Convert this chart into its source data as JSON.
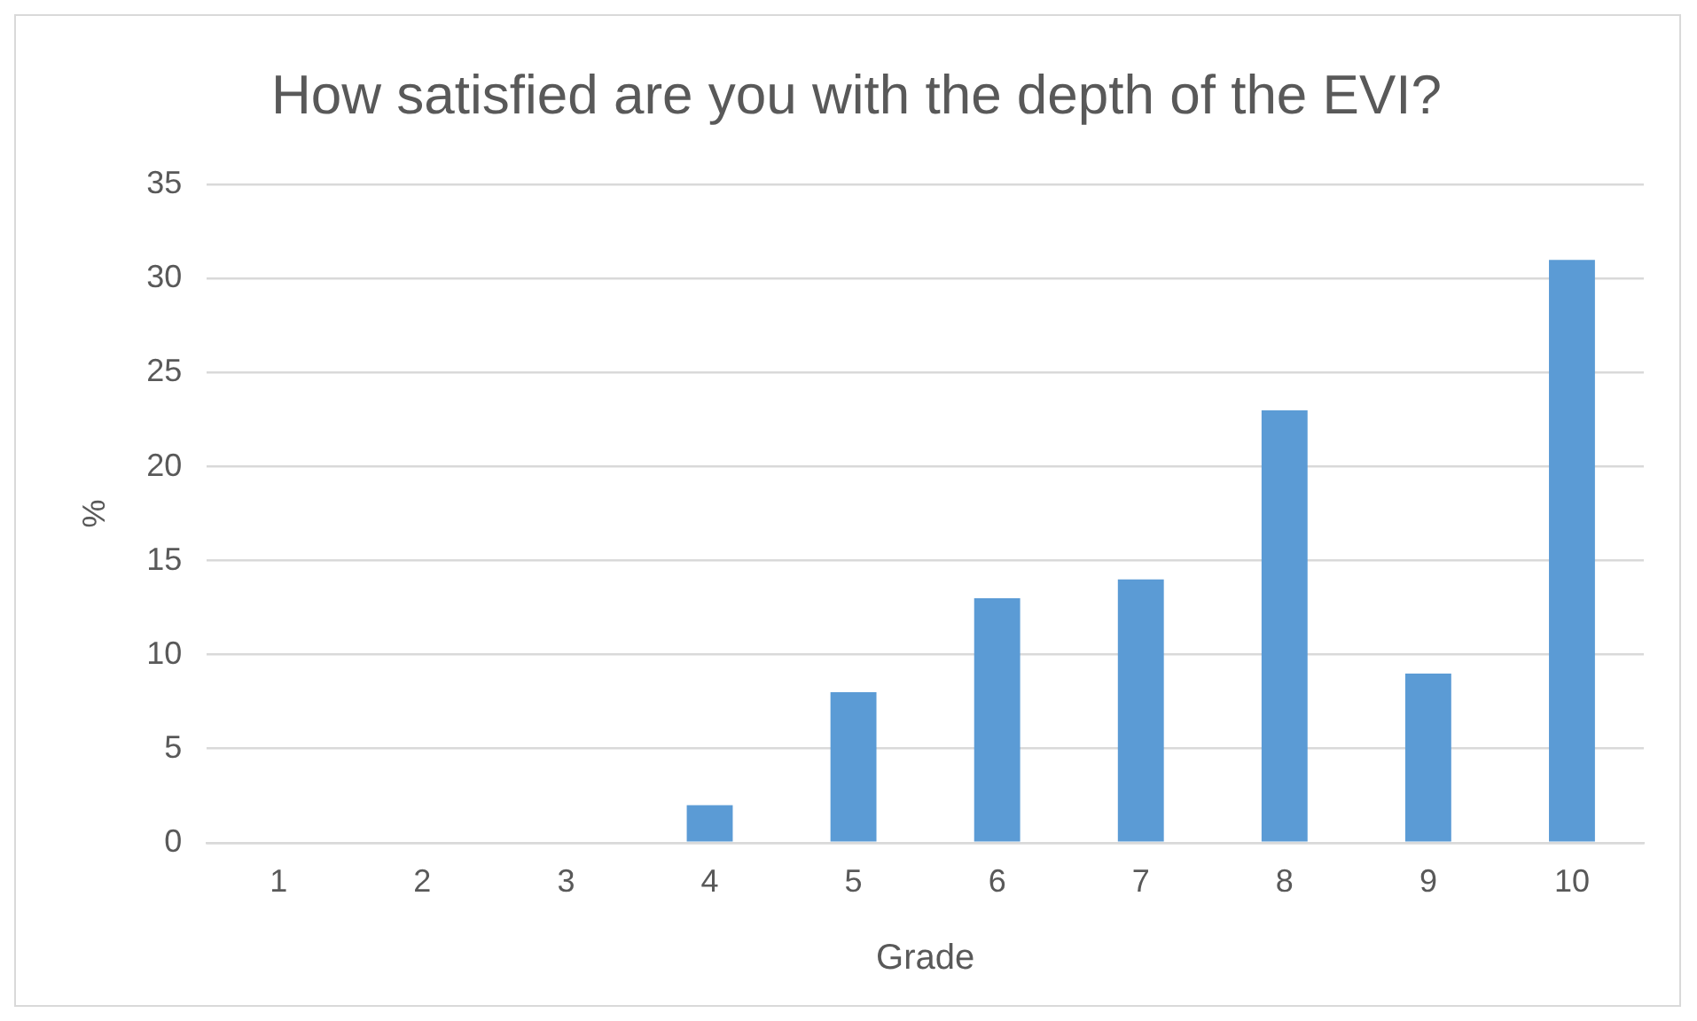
{
  "chart_data": {
    "type": "bar",
    "title": "How satisfied are you with the depth of the EVI?",
    "xlabel": "Grade",
    "ylabel": "%",
    "categories": [
      "1",
      "2",
      "3",
      "4",
      "5",
      "6",
      "7",
      "8",
      "9",
      "10"
    ],
    "values": [
      0,
      0,
      0,
      2,
      8,
      13,
      14,
      23,
      9,
      31
    ],
    "color": "#5b9bd5",
    "ylim": [
      0,
      35
    ],
    "yticks": [
      0,
      5,
      10,
      15,
      20,
      25,
      30,
      35
    ],
    "grid": "y",
    "legend": false
  }
}
